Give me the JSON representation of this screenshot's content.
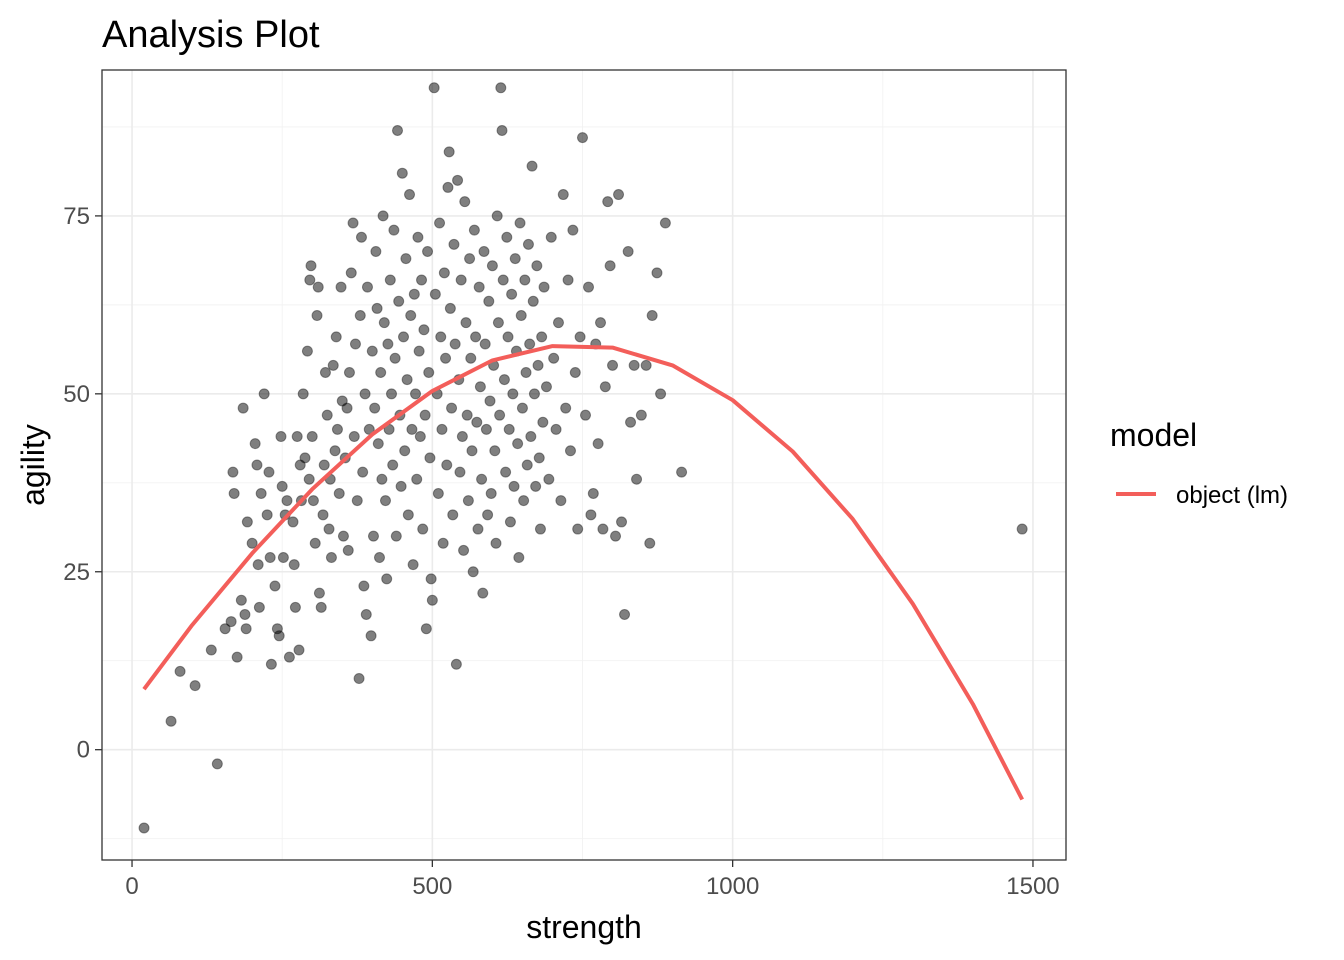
{
  "chart_data": {
    "type": "scatter",
    "title": "Analysis Plot",
    "xlabel": "strength",
    "ylabel": "agility",
    "xlim": [
      -50,
      1555
    ],
    "ylim": [
      -15.5,
      95.5
    ],
    "x_ticks": [
      0,
      500,
      1000,
      1500
    ],
    "y_ticks": [
      0,
      25,
      50,
      75
    ],
    "grid": true,
    "legend": {
      "title": "model",
      "placement": "right",
      "entries": [
        {
          "label": "object (lm)",
          "color": "#f35e5a"
        }
      ]
    },
    "point_color": "#000000",
    "point_opacity": 0.5,
    "series": [
      {
        "type": "scatter",
        "points": [
          [
            20,
            -11
          ],
          [
            65,
            4
          ],
          [
            80,
            11
          ],
          [
            105,
            9
          ],
          [
            132,
            14
          ],
          [
            142,
            -2
          ],
          [
            155,
            17
          ],
          [
            165,
            18
          ],
          [
            168,
            39
          ],
          [
            170,
            36
          ],
          [
            175,
            13
          ],
          [
            182,
            21
          ],
          [
            185,
            48
          ],
          [
            188,
            19
          ],
          [
            190,
            17
          ],
          [
            192,
            32
          ],
          [
            200,
            29
          ],
          [
            205,
            43
          ],
          [
            208,
            40
          ],
          [
            210,
            26
          ],
          [
            212,
            20
          ],
          [
            215,
            36
          ],
          [
            220,
            50
          ],
          [
            225,
            33
          ],
          [
            228,
            39
          ],
          [
            230,
            27
          ],
          [
            232,
            12
          ],
          [
            238,
            23
          ],
          [
            242,
            17
          ],
          [
            245,
            16
          ],
          [
            248,
            44
          ],
          [
            250,
            37
          ],
          [
            252,
            27
          ],
          [
            255,
            33
          ],
          [
            258,
            35
          ],
          [
            262,
            13
          ],
          [
            268,
            32
          ],
          [
            270,
            26
          ],
          [
            272,
            20
          ],
          [
            275,
            44
          ],
          [
            278,
            14
          ],
          [
            280,
            40
          ],
          [
            282,
            35
          ],
          [
            285,
            50
          ],
          [
            288,
            41
          ],
          [
            292,
            56
          ],
          [
            295,
            38
          ],
          [
            296,
            66
          ],
          [
            298,
            68
          ],
          [
            300,
            44
          ],
          [
            302,
            35
          ],
          [
            305,
            29
          ],
          [
            308,
            61
          ],
          [
            310,
            65
          ],
          [
            312,
            22
          ],
          [
            315,
            20
          ],
          [
            318,
            33
          ],
          [
            320,
            40
          ],
          [
            322,
            53
          ],
          [
            325,
            47
          ],
          [
            328,
            31
          ],
          [
            330,
            38
          ],
          [
            332,
            27
          ],
          [
            335,
            54
          ],
          [
            338,
            42
          ],
          [
            340,
            58
          ],
          [
            342,
            45
          ],
          [
            345,
            36
          ],
          [
            348,
            65
          ],
          [
            350,
            49
          ],
          [
            352,
            30
          ],
          [
            355,
            41
          ],
          [
            358,
            48
          ],
          [
            360,
            28
          ],
          [
            362,
            53
          ],
          [
            365,
            67
          ],
          [
            368,
            74
          ],
          [
            370,
            44
          ],
          [
            372,
            57
          ],
          [
            375,
            35
          ],
          [
            378,
            10
          ],
          [
            380,
            61
          ],
          [
            382,
            72
          ],
          [
            384,
            39
          ],
          [
            386,
            23
          ],
          [
            388,
            50
          ],
          [
            390,
            19
          ],
          [
            392,
            65
          ],
          [
            395,
            45
          ],
          [
            398,
            16
          ],
          [
            400,
            56
          ],
          [
            402,
            30
          ],
          [
            404,
            48
          ],
          [
            406,
            70
          ],
          [
            408,
            62
          ],
          [
            410,
            43
          ],
          [
            412,
            27
          ],
          [
            414,
            53
          ],
          [
            416,
            38
          ],
          [
            418,
            75
          ],
          [
            420,
            60
          ],
          [
            422,
            35
          ],
          [
            424,
            24
          ],
          [
            426,
            57
          ],
          [
            428,
            45
          ],
          [
            430,
            66
          ],
          [
            432,
            50
          ],
          [
            434,
            40
          ],
          [
            436,
            73
          ],
          [
            438,
            55
          ],
          [
            440,
            30
          ],
          [
            442,
            87
          ],
          [
            444,
            63
          ],
          [
            446,
            47
          ],
          [
            448,
            37
          ],
          [
            450,
            81
          ],
          [
            452,
            58
          ],
          [
            454,
            42
          ],
          [
            456,
            69
          ],
          [
            458,
            52
          ],
          [
            460,
            33
          ],
          [
            462,
            78
          ],
          [
            464,
            61
          ],
          [
            466,
            45
          ],
          [
            468,
            26
          ],
          [
            470,
            64
          ],
          [
            472,
            50
          ],
          [
            474,
            38
          ],
          [
            476,
            72
          ],
          [
            478,
            56
          ],
          [
            480,
            44
          ],
          [
            482,
            66
          ],
          [
            484,
            31
          ],
          [
            486,
            59
          ],
          [
            488,
            47
          ],
          [
            490,
            17
          ],
          [
            492,
            70
          ],
          [
            494,
            53
          ],
          [
            496,
            41
          ],
          [
            498,
            24
          ],
          [
            500,
            21
          ],
          [
            503,
            93
          ],
          [
            505,
            64
          ],
          [
            508,
            50
          ],
          [
            510,
            36
          ],
          [
            512,
            74
          ],
          [
            514,
            58
          ],
          [
            516,
            45
          ],
          [
            518,
            29
          ],
          [
            520,
            67
          ],
          [
            522,
            55
          ],
          [
            524,
            40
          ],
          [
            526,
            79
          ],
          [
            528,
            84
          ],
          [
            530,
            62
          ],
          [
            532,
            48
          ],
          [
            534,
            33
          ],
          [
            536,
            71
          ],
          [
            538,
            57
          ],
          [
            540,
            12
          ],
          [
            542,
            80
          ],
          [
            544,
            52
          ],
          [
            546,
            39
          ],
          [
            548,
            66
          ],
          [
            550,
            44
          ],
          [
            552,
            28
          ],
          [
            554,
            77
          ],
          [
            556,
            60
          ],
          [
            558,
            47
          ],
          [
            560,
            35
          ],
          [
            562,
            69
          ],
          [
            564,
            55
          ],
          [
            566,
            42
          ],
          [
            568,
            25
          ],
          [
            570,
            73
          ],
          [
            572,
            58
          ],
          [
            574,
            46
          ],
          [
            576,
            31
          ],
          [
            578,
            65
          ],
          [
            580,
            51
          ],
          [
            582,
            38
          ],
          [
            584,
            22
          ],
          [
            586,
            70
          ],
          [
            588,
            57
          ],
          [
            590,
            45
          ],
          [
            592,
            33
          ],
          [
            594,
            63
          ],
          [
            596,
            49
          ],
          [
            598,
            36
          ],
          [
            600,
            68
          ],
          [
            602,
            54
          ],
          [
            604,
            42
          ],
          [
            606,
            29
          ],
          [
            608,
            75
          ],
          [
            610,
            60
          ],
          [
            612,
            47
          ],
          [
            614,
            93
          ],
          [
            616,
            87
          ],
          [
            618,
            66
          ],
          [
            620,
            52
          ],
          [
            622,
            39
          ],
          [
            624,
            72
          ],
          [
            626,
            58
          ],
          [
            628,
            45
          ],
          [
            630,
            32
          ],
          [
            632,
            64
          ],
          [
            634,
            50
          ],
          [
            636,
            37
          ],
          [
            638,
            69
          ],
          [
            640,
            56
          ],
          [
            642,
            43
          ],
          [
            644,
            27
          ],
          [
            646,
            74
          ],
          [
            648,
            61
          ],
          [
            650,
            48
          ],
          [
            652,
            35
          ],
          [
            654,
            66
          ],
          [
            656,
            53
          ],
          [
            658,
            40
          ],
          [
            660,
            71
          ],
          [
            662,
            57
          ],
          [
            664,
            44
          ],
          [
            666,
            82
          ],
          [
            668,
            63
          ],
          [
            670,
            50
          ],
          [
            672,
            37
          ],
          [
            674,
            68
          ],
          [
            676,
            54
          ],
          [
            678,
            41
          ],
          [
            680,
            31
          ],
          [
            682,
            58
          ],
          [
            684,
            46
          ],
          [
            686,
            65
          ],
          [
            690,
            51
          ],
          [
            694,
            38
          ],
          [
            698,
            72
          ],
          [
            702,
            55
          ],
          [
            706,
            45
          ],
          [
            710,
            60
          ],
          [
            714,
            35
          ],
          [
            718,
            78
          ],
          [
            722,
            48
          ],
          [
            726,
            66
          ],
          [
            730,
            42
          ],
          [
            734,
            73
          ],
          [
            738,
            53
          ],
          [
            742,
            31
          ],
          [
            746,
            58
          ],
          [
            750,
            86
          ],
          [
            755,
            47
          ],
          [
            760,
            65
          ],
          [
            764,
            33
          ],
          [
            768,
            36
          ],
          [
            772,
            57
          ],
          [
            776,
            43
          ],
          [
            780,
            60
          ],
          [
            784,
            31
          ],
          [
            788,
            51
          ],
          [
            792,
            77
          ],
          [
            796,
            68
          ],
          [
            800,
            54
          ],
          [
            805,
            30
          ],
          [
            810,
            78
          ],
          [
            815,
            32
          ],
          [
            820,
            19
          ],
          [
            826,
            70
          ],
          [
            830,
            46
          ],
          [
            836,
            54
          ],
          [
            840,
            38
          ],
          [
            848,
            47
          ],
          [
            856,
            54
          ],
          [
            862,
            29
          ],
          [
            866,
            61
          ],
          [
            874,
            67
          ],
          [
            880,
            50
          ],
          [
            888,
            74
          ],
          [
            915,
            39
          ],
          [
            1482,
            31
          ]
        ]
      },
      {
        "type": "line",
        "name": "object (lm)",
        "color": "#f35e5a",
        "points": [
          [
            20,
            8.5
          ],
          [
            100,
            17.5
          ],
          [
            200,
            27.6
          ],
          [
            300,
            36.6
          ],
          [
            400,
            44.3
          ],
          [
            500,
            50.4
          ],
          [
            600,
            54.7
          ],
          [
            700,
            56.7
          ],
          [
            800,
            56.5
          ],
          [
            900,
            54.0
          ],
          [
            1000,
            49.1
          ],
          [
            1100,
            41.9
          ],
          [
            1200,
            32.4
          ],
          [
            1300,
            20.5
          ],
          [
            1400,
            6.4
          ],
          [
            1482,
            -7.0
          ]
        ]
      }
    ]
  }
}
